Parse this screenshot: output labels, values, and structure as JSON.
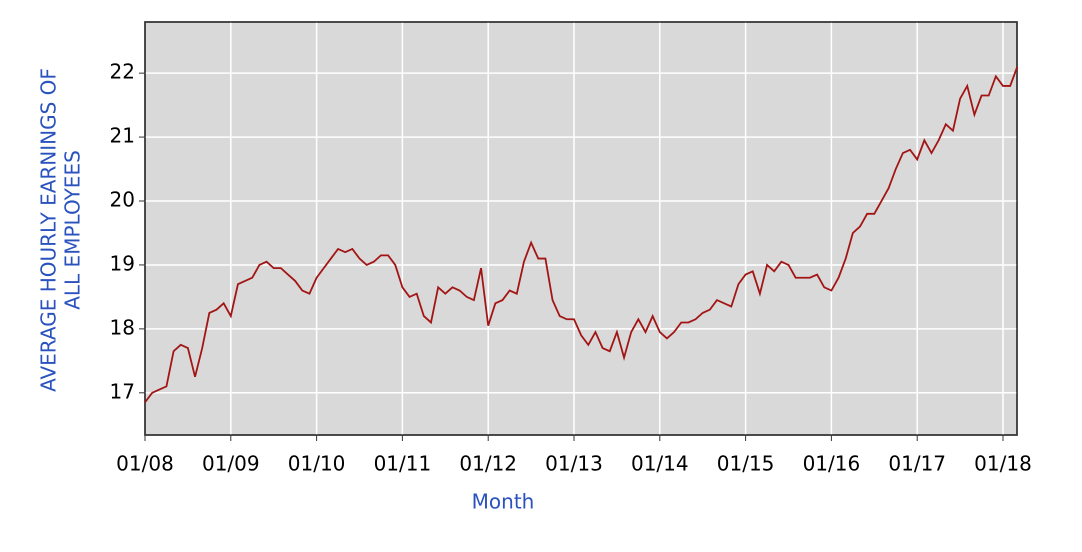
{
  "chart_data": {
    "type": "line",
    "y_label": [
      "AVERAGE HOURLY EARNINGS OF",
      "ALL EMPLOYEES"
    ],
    "x_label": "Month",
    "categories": [
      "01/08",
      null,
      null,
      null,
      null,
      null,
      null,
      null,
      null,
      null,
      null,
      null,
      "01/09",
      null,
      null,
      null,
      null,
      null,
      null,
      null,
      null,
      null,
      null,
      null,
      "01/10",
      null,
      null,
      null,
      null,
      null,
      null,
      null,
      null,
      null,
      null,
      null,
      "01/11",
      null,
      null,
      null,
      null,
      null,
      null,
      null,
      null,
      null,
      null,
      null,
      "01/12",
      null,
      null,
      null,
      null,
      null,
      null,
      null,
      null,
      null,
      null,
      null,
      "01/13",
      null,
      null,
      null,
      null,
      null,
      null,
      null,
      null,
      null,
      null,
      null,
      "01/14",
      null,
      null,
      null,
      null,
      null,
      null,
      null,
      null,
      null,
      null,
      null,
      "01/15",
      null,
      null,
      null,
      null,
      null,
      null,
      null,
      null,
      null,
      null,
      null,
      "01/16",
      null,
      null,
      null,
      null,
      null,
      null,
      null,
      null,
      null,
      null,
      null,
      "01/17",
      null,
      null,
      null,
      null,
      null,
      null,
      null,
      null,
      null,
      null,
      null,
      "01/18",
      null,
      null
    ],
    "values": [
      16.85,
      17.0,
      17.05,
      17.1,
      17.65,
      17.75,
      17.7,
      17.25,
      17.7,
      18.25,
      18.3,
      18.4,
      18.2,
      18.7,
      18.75,
      18.8,
      19.0,
      19.05,
      18.95,
      18.95,
      18.85,
      18.75,
      18.6,
      18.55,
      18.8,
      18.95,
      19.1,
      19.25,
      19.2,
      19.25,
      19.1,
      19.0,
      19.05,
      19.15,
      19.15,
      19.0,
      18.65,
      18.5,
      18.55,
      18.2,
      18.1,
      18.65,
      18.55,
      18.65,
      18.6,
      18.5,
      18.45,
      18.95,
      18.05,
      18.4,
      18.45,
      18.6,
      18.55,
      19.05,
      19.35,
      19.1,
      19.1,
      18.45,
      18.2,
      18.15,
      18.15,
      17.9,
      17.75,
      17.95,
      17.7,
      17.65,
      17.95,
      17.55,
      17.95,
      18.15,
      17.95,
      18.2,
      17.95,
      17.85,
      17.95,
      18.1,
      18.1,
      18.15,
      18.25,
      18.3,
      18.45,
      18.4,
      18.35,
      18.7,
      18.85,
      18.9,
      18.55,
      19.0,
      18.9,
      19.05,
      19.0,
      18.8,
      18.8,
      18.8,
      18.85,
      18.65,
      18.6,
      18.8,
      19.1,
      19.5,
      19.6,
      19.8,
      19.8,
      20.0,
      20.2,
      20.5,
      20.75,
      20.8,
      20.65,
      20.95,
      20.75,
      20.95,
      21.2,
      21.1,
      21.6,
      21.8,
      21.35,
      21.65,
      21.65,
      21.95,
      21.8,
      21.8,
      22.1
    ],
    "color": "#a31515",
    "ylim": [
      16.34,
      22.8
    ],
    "yticks": [
      17,
      18,
      19,
      20,
      21,
      22
    ],
    "grid": true
  }
}
